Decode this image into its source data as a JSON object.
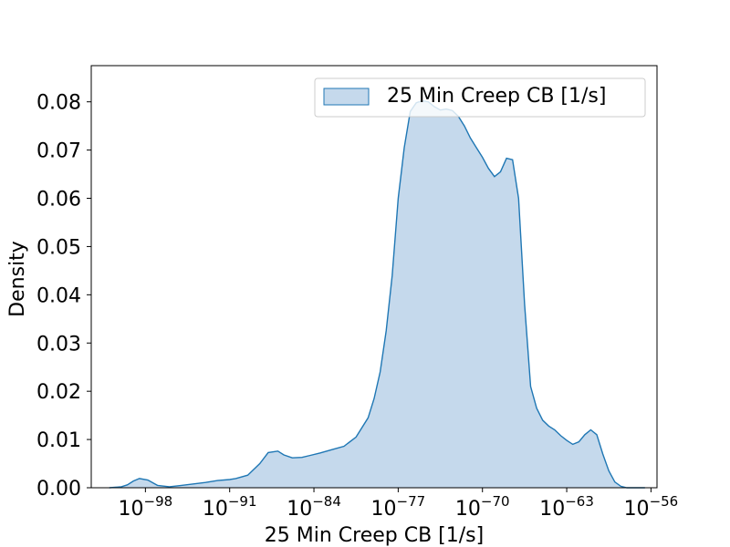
{
  "chart_data": {
    "type": "area",
    "title": "",
    "xlabel": "25 Min Creep CB [1/s]",
    "ylabel": "Density",
    "x_scale": "log",
    "xlim_exponent": [
      -102.5,
      -55.5
    ],
    "ylim": [
      0,
      0.0875
    ],
    "x_ticks": [
      {
        "exp": -98,
        "base": "10",
        "sup": "−98"
      },
      {
        "exp": -91,
        "base": "10",
        "sup": "−91"
      },
      {
        "exp": -84,
        "base": "10",
        "sup": "−84"
      },
      {
        "exp": -77,
        "base": "10",
        "sup": "−77"
      },
      {
        "exp": -70,
        "base": "10",
        "sup": "−70"
      },
      {
        "exp": -63,
        "base": "10",
        "sup": "−63"
      },
      {
        "exp": -56,
        "base": "10",
        "sup": "−56"
      }
    ],
    "y_ticks": [
      {
        "value": 0.0,
        "label": "0.00"
      },
      {
        "value": 0.01,
        "label": "0.01"
      },
      {
        "value": 0.02,
        "label": "0.02"
      },
      {
        "value": 0.03,
        "label": "0.03"
      },
      {
        "value": 0.04,
        "label": "0.04"
      },
      {
        "value": 0.05,
        "label": "0.05"
      },
      {
        "value": 0.06,
        "label": "0.06"
      },
      {
        "value": 0.07,
        "label": "0.07"
      },
      {
        "value": 0.08,
        "label": "0.08"
      }
    ],
    "grid": false,
    "legend": {
      "placement": "top-right"
    },
    "series": [
      {
        "name": "25 Min Creep CB [1/s]",
        "color": "#1f77b4",
        "fill_color": "#c5d9ec",
        "x_exponent": [
          -101.0,
          -100.0,
          -99.5,
          -99.0,
          -98.5,
          -97.8,
          -97.0,
          -96.0,
          -95.0,
          -94.0,
          -93.0,
          -92.0,
          -91.0,
          -90.5,
          -89.5,
          -88.5,
          -87.8,
          -87.0,
          -86.5,
          -85.8,
          -85.0,
          -84.3,
          -83.5,
          -82.5,
          -81.5,
          -80.5,
          -79.5,
          -79.0,
          -78.5,
          -78.0,
          -77.5,
          -77.0,
          -76.5,
          -76.0,
          -75.5,
          -75.0,
          -74.5,
          -74.0,
          -73.5,
          -73.0,
          -72.5,
          -72.0,
          -71.5,
          -71.0,
          -70.5,
          -70.0,
          -69.5,
          -69.0,
          -68.5,
          -68.0,
          -67.5,
          -67.0,
          -66.5,
          -66.0,
          -65.5,
          -65.0,
          -64.5,
          -64.0,
          -63.5,
          -63.0,
          -62.5,
          -62.0,
          -61.5,
          -61.0,
          -60.5,
          -60.0,
          -59.5,
          -59.0,
          -58.5,
          -58.0,
          -57.5,
          -57.0,
          -56.5
        ],
        "y": [
          0.0,
          0.0002,
          0.0006,
          0.0014,
          0.0019,
          0.0016,
          0.0005,
          0.0002,
          0.0005,
          0.0008,
          0.0011,
          0.0015,
          0.0017,
          0.0019,
          0.0026,
          0.005,
          0.0073,
          0.0076,
          0.0068,
          0.0062,
          0.0063,
          0.0067,
          0.0072,
          0.0079,
          0.0086,
          0.0105,
          0.0145,
          0.0185,
          0.024,
          0.0325,
          0.044,
          0.06,
          0.0705,
          0.078,
          0.0798,
          0.0802,
          0.08,
          0.079,
          0.0783,
          0.0785,
          0.0782,
          0.077,
          0.075,
          0.0725,
          0.0705,
          0.0685,
          0.0662,
          0.0645,
          0.0655,
          0.0683,
          0.068,
          0.06,
          0.038,
          0.021,
          0.0165,
          0.014,
          0.0128,
          0.012,
          0.0108,
          0.0098,
          0.009,
          0.0095,
          0.011,
          0.012,
          0.011,
          0.007,
          0.0035,
          0.0012,
          0.0003,
          0.0,
          0.0,
          0.0,
          0.0
        ]
      }
    ]
  }
}
